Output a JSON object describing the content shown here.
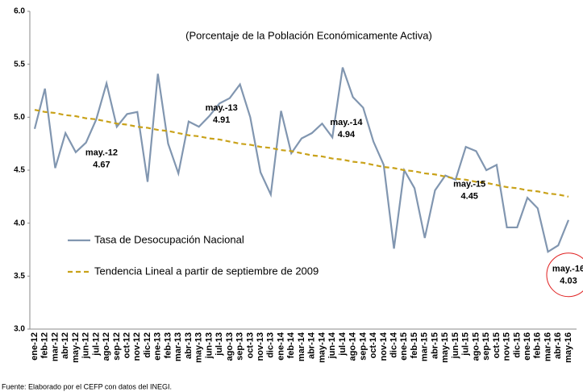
{
  "chart_data": {
    "type": "line",
    "subtitle": "(Porcentaje de la Población Económicamente Activa)",
    "source": "Fuente: Elaborado por el CEFP con datos del INEGI.",
    "categories": [
      "ene-12",
      "feb-12",
      "mar-12",
      "abr-12",
      "may-12",
      "jun-12",
      "jul-12",
      "ago-12",
      "sep-12",
      "oct-12",
      "nov-12",
      "dic-12",
      "ene-13",
      "feb-13",
      "mar-13",
      "abr-13",
      "may-13",
      "jun-13",
      "jul-13",
      "ago-13",
      "sep-13",
      "oct-13",
      "nov-13",
      "dic-13",
      "ene-14",
      "feb-14",
      "mar-14",
      "abr-14",
      "may-14",
      "jun-14",
      "jul-14",
      "ago-14",
      "sep-14",
      "oct-14",
      "nov-14",
      "dic-14",
      "ene-15",
      "feb-15",
      "mar-15",
      "abr-15",
      "may-15",
      "jun-15",
      "jul-15",
      "ago-15",
      "sep-15",
      "oct-15",
      "nov-15",
      "dic-15",
      "ene-16",
      "feb-16",
      "mar-16",
      "abr-16",
      "may-16"
    ],
    "series": [
      {
        "name": "Tasa de Desocupación Nacional",
        "color": "#8196b0",
        "dash": false,
        "values": [
          4.89,
          5.27,
          4.52,
          4.85,
          4.67,
          4.76,
          4.98,
          5.32,
          4.91,
          5.03,
          5.05,
          4.39,
          5.41,
          4.75,
          4.47,
          4.96,
          4.91,
          5.01,
          5.13,
          5.18,
          5.31,
          5.0,
          4.48,
          4.27,
          5.06,
          4.66,
          4.8,
          4.85,
          4.94,
          4.81,
          5.47,
          5.19,
          5.09,
          4.77,
          4.55,
          3.76,
          4.5,
          4.33,
          3.86,
          4.31,
          4.45,
          4.41,
          4.72,
          4.68,
          4.5,
          4.55,
          3.96,
          3.96,
          4.24,
          4.14,
          3.73,
          3.79,
          4.03
        ]
      },
      {
        "name": "Tendencia Lineal a partir de septiembre de 2009",
        "color": "#c9a21a",
        "dash": true,
        "values": [
          5.07,
          5.05,
          5.04,
          5.02,
          5.01,
          4.99,
          4.98,
          4.96,
          4.94,
          4.93,
          4.91,
          4.9,
          4.88,
          4.87,
          4.85,
          4.83,
          4.82,
          4.8,
          4.79,
          4.77,
          4.75,
          4.74,
          4.72,
          4.71,
          4.69,
          4.68,
          4.66,
          4.64,
          4.63,
          4.61,
          4.6,
          4.58,
          4.57,
          4.55,
          4.53,
          4.52,
          4.5,
          4.49,
          4.47,
          4.46,
          4.44,
          4.42,
          4.41,
          4.39,
          4.38,
          4.36,
          4.34,
          4.33,
          4.31,
          4.3,
          4.28,
          4.27,
          4.25
        ]
      }
    ],
    "annotations": [
      {
        "x": "may-12",
        "text": "may.-12",
        "value": 4.67
      },
      {
        "x": "may-13",
        "text": "may.-13",
        "value": 4.91
      },
      {
        "x": "may-14",
        "text": "may.-14",
        "value": 4.94
      },
      {
        "x": "may-15",
        "text": "may.-15",
        "value": 4.45
      },
      {
        "x": "may-16",
        "text": "may.-16",
        "value": 4.03,
        "circled": true
      }
    ],
    "ylim": [
      3,
      6
    ],
    "yticks": [
      {
        "value": 3,
        "label": "3.0"
      },
      {
        "value": 3.5,
        "label": "3.5"
      },
      {
        "value": 4,
        "label": "4.0"
      },
      {
        "value": 4.5,
        "label": "4.5"
      },
      {
        "value": 5,
        "label": "5.0"
      },
      {
        "value": 5.5,
        "label": "5.5"
      },
      {
        "value": 6,
        "label": "6.0"
      }
    ],
    "legend": "lower-left"
  }
}
